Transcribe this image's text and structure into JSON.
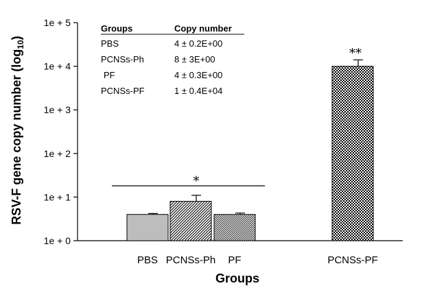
{
  "chart_data": {
    "type": "bar",
    "xlabel": "Groups",
    "ylabel": "RSV-F gene copy number (log",
    "ylabel_sub": "10",
    "ylabel_close": ")",
    "ylim": [
      0,
      5
    ],
    "yscale": "log10",
    "yticks": [
      {
        "value": 0,
        "label": "1e + 0"
      },
      {
        "value": 1,
        "label": "1e + 1"
      },
      {
        "value": 2,
        "label": "1e + 2"
      },
      {
        "value": 3,
        "label": "1e + 3"
      },
      {
        "value": 4,
        "label": "1e + 4"
      },
      {
        "value": 5,
        "label": "1e + 5"
      }
    ],
    "categories": [
      "PBS",
      "PCNSs-Ph",
      "PF",
      "PCNSs-PF"
    ],
    "values": [
      4,
      8,
      4,
      10000
    ],
    "errors": [
      0.2,
      3,
      0.3,
      4000
    ],
    "patterns": [
      "solid-gray",
      "diagonal-dense",
      "diagonal-fine",
      "checker"
    ],
    "significance": [
      {
        "label": "*",
        "span": [
          "PBS",
          "PF"
        ],
        "line": true
      },
      {
        "label": "**",
        "over": "PCNSs-PF",
        "line": false
      }
    ],
    "inset_table": {
      "headers": [
        "Groups",
        "Copy number"
      ],
      "rows": [
        [
          "PBS",
          "4 ± 0.2E+00"
        ],
        [
          "PCNSs-Ph",
          "8 ± 3E+00"
        ],
        [
          "PF",
          "4 ± 0.3E+00"
        ],
        [
          "PCNSs-PF",
          "1 ± 0.4E+04"
        ]
      ]
    },
    "colors": {
      "bar_fill": "#bdbdbd",
      "stroke": "#000000",
      "pattern_ink": "#000000"
    }
  }
}
